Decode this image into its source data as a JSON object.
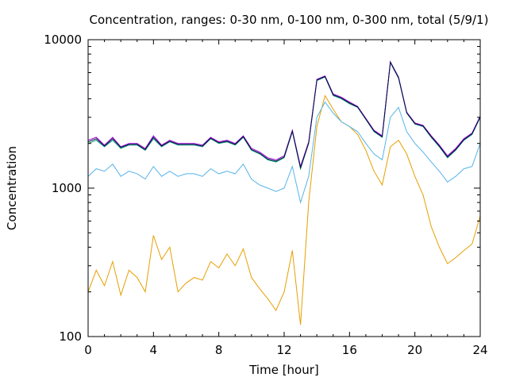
{
  "chart_data": {
    "type": "line",
    "title": "Concentration, ranges: 0-30 nm, 0-100 nm, 0-300 nm, total (5/9/1)",
    "xlabel": "Time [hour]",
    "ylabel": "Concentration",
    "xlim": [
      0,
      24
    ],
    "ylim": [
      100,
      10000
    ],
    "yscale": "log",
    "grid": false,
    "legend": "none",
    "x_ticks": [
      0,
      4,
      8,
      12,
      16,
      20,
      24
    ],
    "x_tick_labels": [
      "0",
      "4",
      "8",
      "12",
      "16",
      "20",
      "24"
    ],
    "y_ticks": [
      100,
      1000,
      10000
    ],
    "y_tick_labels": [
      "100",
      "1000",
      "10000"
    ],
    "x": [
      0,
      0.5,
      1,
      1.5,
      2,
      2.5,
      3,
      3.5,
      4,
      4.5,
      5,
      5.5,
      6,
      6.5,
      7,
      7.5,
      8,
      8.5,
      9,
      9.5,
      10,
      10.5,
      11,
      11.5,
      12,
      12.5,
      13,
      13.5,
      14,
      14.5,
      15,
      15.5,
      16,
      16.5,
      17,
      17.5,
      18,
      18.5,
      19,
      19.5,
      20,
      20.5,
      21,
      21.5,
      22,
      22.5,
      23,
      23.5,
      24
    ],
    "series": [
      {
        "color": "#e69f00",
        "values": [
          200,
          280,
          220,
          320,
          190,
          280,
          250,
          200,
          480,
          330,
          400,
          200,
          230,
          250,
          240,
          320,
          290,
          360,
          300,
          390,
          250,
          210,
          180,
          150,
          200,
          380,
          120,
          800,
          2600,
          4200,
          3400,
          2800,
          2600,
          2300,
          1800,
          1300,
          1050,
          1900,
          2100,
          1700,
          1200,
          900,
          550,
          400,
          310,
          340,
          380,
          420,
          650
        ]
      },
      {
        "color": "#56b4e9",
        "values": [
          1200,
          1350,
          1300,
          1450,
          1200,
          1300,
          1250,
          1150,
          1400,
          1200,
          1300,
          1200,
          1250,
          1250,
          1200,
          1350,
          1250,
          1300,
          1250,
          1450,
          1150,
          1050,
          1000,
          950,
          1000,
          1400,
          800,
          1200,
          3000,
          3800,
          3200,
          2800,
          2600,
          2400,
          2000,
          1700,
          1550,
          3000,
          3500,
          2400,
          2000,
          1750,
          1500,
          1300,
          1100,
          1200,
          1350,
          1400,
          2000
        ]
      },
      {
        "color": "#009e73",
        "values": [
          2000,
          2100,
          1900,
          2100,
          1850,
          1950,
          1950,
          1800,
          2150,
          1900,
          2050,
          1950,
          1950,
          1950,
          1900,
          2150,
          2000,
          2050,
          1950,
          2200,
          1800,
          1700,
          1550,
          1500,
          1600,
          2400,
          1350,
          2000,
          5300,
          5600,
          4200,
          4000,
          3700,
          3500,
          2900,
          2400,
          2200,
          7000,
          5500,
          3200,
          2700,
          2600,
          2200,
          1900,
          1600,
          1800,
          2100,
          2300,
          3000
        ]
      },
      {
        "color": "#9400d3",
        "values": [
          2100,
          2200,
          1950,
          2200,
          1900,
          2000,
          2000,
          1850,
          2250,
          1950,
          2100,
          2000,
          2000,
          2000,
          1950,
          2200,
          2050,
          2100,
          2000,
          2250,
          1850,
          1750,
          1600,
          1550,
          1650,
          2450,
          1400,
          2050,
          5400,
          5700,
          4300,
          4100,
          3800,
          3550,
          2950,
          2450,
          2250,
          7100,
          5600,
          3250,
          2750,
          2650,
          2250,
          1950,
          1650,
          1850,
          2150,
          2350,
          3050
        ]
      },
      {
        "color": "#0a0a4a",
        "values": [
          2050,
          2150,
          1920,
          2150,
          1880,
          1970,
          1970,
          1820,
          2200,
          1920,
          2070,
          1970,
          1970,
          1970,
          1920,
          2170,
          2020,
          2070,
          1970,
          2220,
          1820,
          1720,
          1570,
          1520,
          1620,
          2420,
          1370,
          2020,
          5350,
          5650,
          4250,
          4050,
          3750,
          3520,
          2920,
          2420,
          2220,
          7050,
          5550,
          3220,
          2720,
          2620,
          2220,
          1920,
          1620,
          1820,
          2120,
          2320,
          3020
        ]
      }
    ]
  }
}
